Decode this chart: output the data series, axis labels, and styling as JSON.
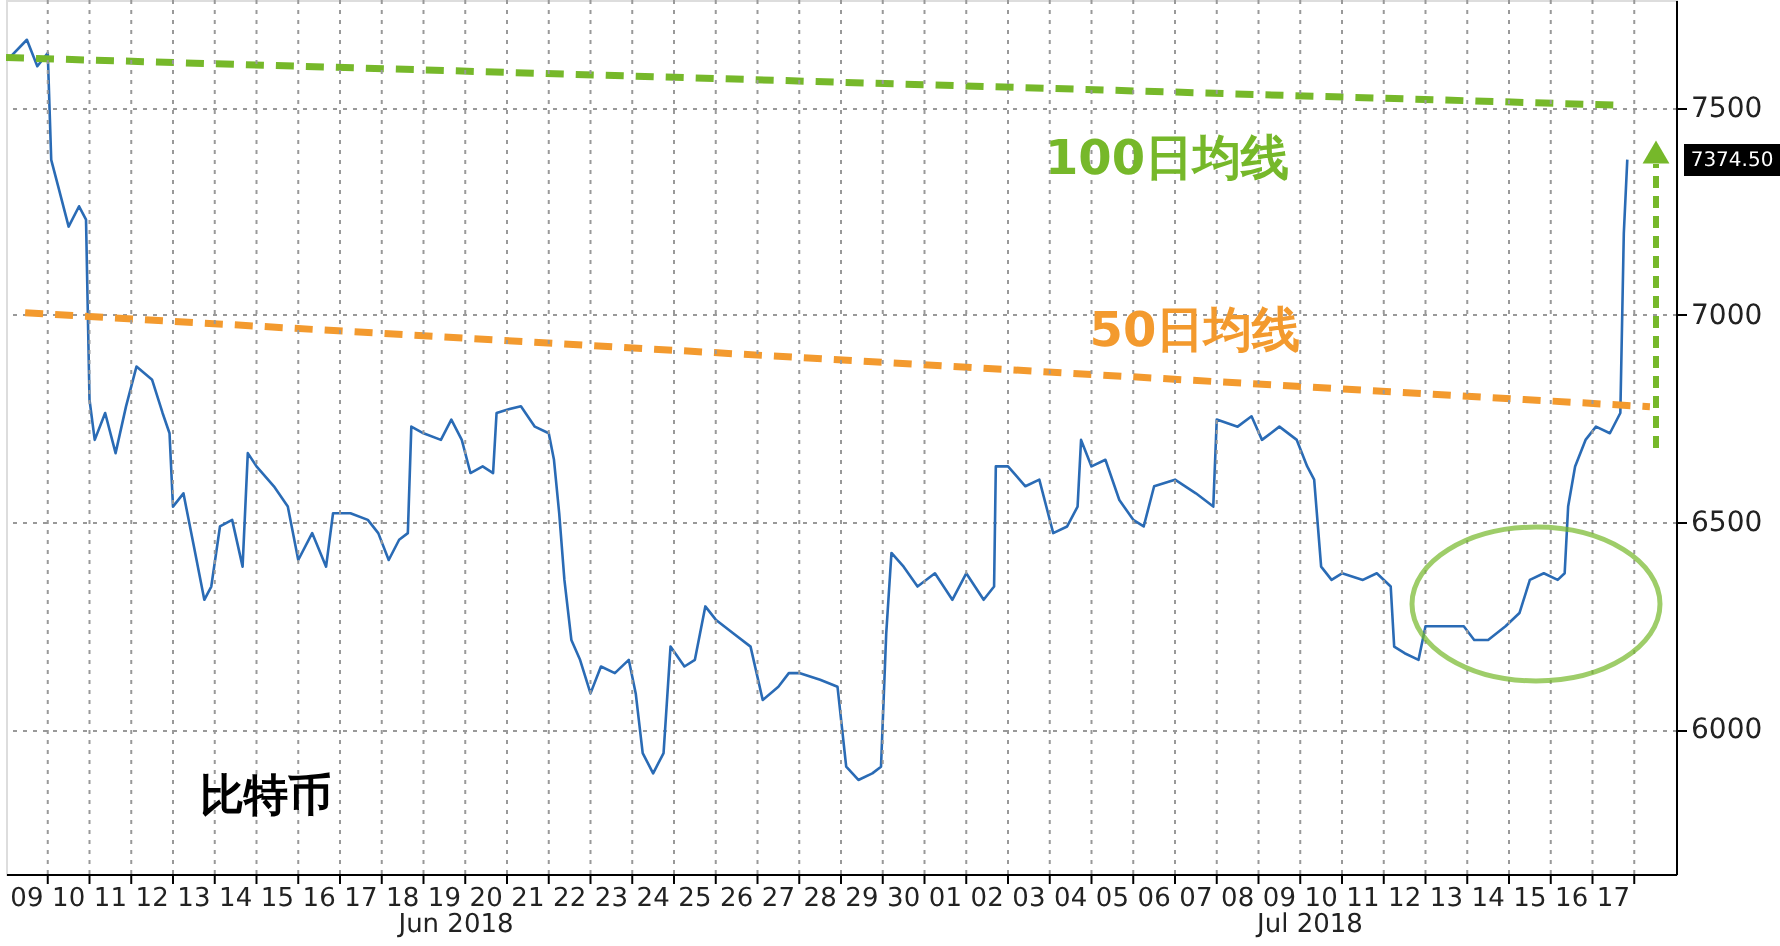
{
  "chart_data": {
    "type": "line",
    "xlim": [
      "2018-06-09T00:00",
      "2018-07-19T00:00"
    ],
    "ylim": [
      5650,
      7760
    ],
    "yticks": [
      6000,
      6500,
      7000,
      7500
    ],
    "grid": true,
    "legend": false,
    "xticks": [
      {
        "value": "2018-06-09T12:00",
        "label": "09"
      },
      {
        "value": "2018-06-10T12:00",
        "label": "10"
      },
      {
        "value": "2018-06-11T12:00",
        "label": "11"
      },
      {
        "value": "2018-06-12T12:00",
        "label": "12"
      },
      {
        "value": "2018-06-13T12:00",
        "label": "13"
      },
      {
        "value": "2018-06-14T12:00",
        "label": "14"
      },
      {
        "value": "2018-06-15T12:00",
        "label": "15"
      },
      {
        "value": "2018-06-16T12:00",
        "label": "16"
      },
      {
        "value": "2018-06-17T12:00",
        "label": "17"
      },
      {
        "value": "2018-06-18T12:00",
        "label": "18"
      },
      {
        "value": "2018-06-19T12:00",
        "label": "19"
      },
      {
        "value": "2018-06-20T12:00",
        "label": "20"
      },
      {
        "value": "2018-06-21T12:00",
        "label": "21"
      },
      {
        "value": "2018-06-22T12:00",
        "label": "22"
      },
      {
        "value": "2018-06-23T12:00",
        "label": "23"
      },
      {
        "value": "2018-06-24T12:00",
        "label": "24"
      },
      {
        "value": "2018-06-25T12:00",
        "label": "25"
      },
      {
        "value": "2018-06-26T12:00",
        "label": "26"
      },
      {
        "value": "2018-06-27T12:00",
        "label": "27"
      },
      {
        "value": "2018-06-28T12:00",
        "label": "28"
      },
      {
        "value": "2018-06-29T12:00",
        "label": "29"
      },
      {
        "value": "2018-06-30T12:00",
        "label": "30"
      },
      {
        "value": "2018-07-01T12:00",
        "label": "01"
      },
      {
        "value": "2018-07-02T12:00",
        "label": "02"
      },
      {
        "value": "2018-07-03T12:00",
        "label": "03"
      },
      {
        "value": "2018-07-04T12:00",
        "label": "04"
      },
      {
        "value": "2018-07-05T12:00",
        "label": "05"
      },
      {
        "value": "2018-07-06T12:00",
        "label": "06"
      },
      {
        "value": "2018-07-07T12:00",
        "label": "07"
      },
      {
        "value": "2018-07-08T12:00",
        "label": "08"
      },
      {
        "value": "2018-07-09T12:00",
        "label": "09"
      },
      {
        "value": "2018-07-10T12:00",
        "label": "10"
      },
      {
        "value": "2018-07-11T12:00",
        "label": "11"
      },
      {
        "value": "2018-07-12T12:00",
        "label": "12"
      },
      {
        "value": "2018-07-13T12:00",
        "label": "13"
      },
      {
        "value": "2018-07-14T12:00",
        "label": "14"
      },
      {
        "value": "2018-07-15T12:00",
        "label": "15"
      },
      {
        "value": "2018-07-16T12:00",
        "label": "16"
      },
      {
        "value": "2018-07-17T12:00",
        "label": "17"
      },
      {
        "value": "2018-06-10T00:00",
        "label": null
      },
      {
        "value": "2018-06-11T00:00",
        "label": null
      },
      {
        "value": "2018-06-12T00:00",
        "label": null
      },
      {
        "value": "2018-06-13T00:00",
        "label": null
      },
      {
        "value": "2018-06-14T00:00",
        "label": null
      },
      {
        "value": "2018-06-15T00:00",
        "label": null
      },
      {
        "value": "2018-06-16T00:00",
        "label": null
      },
      {
        "value": "2018-06-17T00:00",
        "label": null
      },
      {
        "value": "2018-06-18T00:00",
        "label": null
      },
      {
        "value": "2018-06-19T00:00",
        "label": null
      },
      {
        "value": "2018-06-20T00:00",
        "label": null
      },
      {
        "value": "2018-06-21T00:00",
        "label": null
      },
      {
        "value": "2018-06-22T00:00",
        "label": null
      },
      {
        "value": "2018-06-23T00:00",
        "label": null
      },
      {
        "value": "2018-06-24T00:00",
        "label": null
      },
      {
        "value": "2018-06-25T00:00",
        "label": null
      },
      {
        "value": "2018-06-26T00:00",
        "label": null
      },
      {
        "value": "2018-06-27T00:00",
        "label": null
      },
      {
        "value": "2018-06-28T00:00",
        "label": null
      },
      {
        "value": "2018-06-29T00:00",
        "label": null
      },
      {
        "value": "2018-06-30T00:00",
        "label": null
      },
      {
        "value": "2018-07-01T00:00",
        "label": null
      },
      {
        "value": "2018-07-02T00:00",
        "label": null
      },
      {
        "value": "2018-07-03T00:00",
        "label": null
      },
      {
        "value": "2018-07-04T00:00",
        "label": null
      },
      {
        "value": "2018-07-05T00:00",
        "label": null
      },
      {
        "value": "2018-07-06T00:00",
        "label": null
      },
      {
        "value": "2018-07-07T00:00",
        "label": null
      },
      {
        "value": "2018-07-08T00:00",
        "label": null
      },
      {
        "value": "2018-07-09T00:00",
        "label": null
      },
      {
        "value": "2018-07-10T00:00",
        "label": null
      },
      {
        "value": "2018-07-11T00:00",
        "label": null
      },
      {
        "value": "2018-07-12T00:00",
        "label": null
      },
      {
        "value": "2018-07-13T00:00",
        "label": null
      },
      {
        "value": "2018-07-14T00:00",
        "label": null
      },
      {
        "value": "2018-07-15T00:00",
        "label": null
      },
      {
        "value": "2018-07-16T00:00",
        "label": null
      },
      {
        "value": "2018-07-17T00:00",
        "label": null
      },
      {
        "value": "2018-07-18T00:00",
        "label": null
      }
    ],
    "series": [
      {
        "color": "#2a6bb5",
        "line_style": "solid",
        "x": [
          "2018-06-09T01:00",
          "2018-06-09T12:00",
          "2018-06-09T18:00",
          "2018-06-10T00:00",
          "2018-06-10T02:00",
          "2018-06-10T06:00",
          "2018-06-10T12:00",
          "2018-06-10T18:00",
          "2018-06-10T22:00",
          "2018-06-11T00:00",
          "2018-06-11T03:00",
          "2018-06-11T09:00",
          "2018-06-11T15:00",
          "2018-06-11T21:00",
          "2018-06-12T03:00",
          "2018-06-12T12:00",
          "2018-06-12T18:00",
          "2018-06-12T22:00",
          "2018-06-13T00:00",
          "2018-06-13T06:00",
          "2018-06-13T12:00",
          "2018-06-13T18:00",
          "2018-06-13T22:00",
          "2018-06-14T03:00",
          "2018-06-14T10:00",
          "2018-06-14T16:00",
          "2018-06-14T19:00",
          "2018-06-15T00:00",
          "2018-06-15T10:00",
          "2018-06-15T18:00",
          "2018-06-16T00:00",
          "2018-06-16T08:00",
          "2018-06-16T16:00",
          "2018-06-16T20:00",
          "2018-06-17T06:00",
          "2018-06-17T16:00",
          "2018-06-17T22:00",
          "2018-06-18T04:00",
          "2018-06-18T10:00",
          "2018-06-18T15:00",
          "2018-06-18T17:00",
          "2018-06-19T00:00",
          "2018-06-19T10:00",
          "2018-06-19T16:00",
          "2018-06-19T22:00",
          "2018-06-20T03:00",
          "2018-06-20T10:00",
          "2018-06-20T16:00",
          "2018-06-20T18:00",
          "2018-06-21T00:00",
          "2018-06-21T08:00",
          "2018-06-21T16:00",
          "2018-06-22T00:00",
          "2018-06-22T03:00",
          "2018-06-22T06:00",
          "2018-06-22T09:00",
          "2018-06-22T13:00",
          "2018-06-22T18:00",
          "2018-06-23T00:00",
          "2018-06-23T06:00",
          "2018-06-23T14:00",
          "2018-06-23T22:00",
          "2018-06-24T02:00",
          "2018-06-24T06:00",
          "2018-06-24T12:00",
          "2018-06-24T18:00",
          "2018-06-24T22:00",
          "2018-06-25T06:00",
          "2018-06-25T12:00",
          "2018-06-25T18:00",
          "2018-06-26T00:00",
          "2018-06-26T10:00",
          "2018-06-26T20:00",
          "2018-06-27T03:00",
          "2018-06-27T12:00",
          "2018-06-27T18:00",
          "2018-06-28T00:00",
          "2018-06-28T12:00",
          "2018-06-28T22:00",
          "2018-06-29T03:00",
          "2018-06-29T10:00",
          "2018-06-29T18:00",
          "2018-06-29T23:00",
          "2018-06-30T02:00",
          "2018-06-30T05:00",
          "2018-06-30T12:00",
          "2018-06-30T20:00",
          "2018-07-01T06:00",
          "2018-07-01T16:00",
          "2018-07-02T00:00",
          "2018-07-02T10:00",
          "2018-07-02T16:00",
          "2018-07-02T17:00",
          "2018-07-03T00:00",
          "2018-07-03T10:00",
          "2018-07-03T18:00",
          "2018-07-04T02:00",
          "2018-07-04T10:00",
          "2018-07-04T16:00",
          "2018-07-04T18:00",
          "2018-07-05T00:00",
          "2018-07-05T08:00",
          "2018-07-05T16:00",
          "2018-07-06T00:00",
          "2018-07-06T06:00",
          "2018-07-06T12:00",
          "2018-07-07T00:00",
          "2018-07-07T12:00",
          "2018-07-07T22:00",
          "2018-07-08T00:00",
          "2018-07-08T12:00",
          "2018-07-08T20:00",
          "2018-07-09T02:00",
          "2018-07-09T12:00",
          "2018-07-09T22:00",
          "2018-07-10T04:00",
          "2018-07-10T08:00",
          "2018-07-10T12:00",
          "2018-07-10T18:00",
          "2018-07-11T00:00",
          "2018-07-11T12:00",
          "2018-07-11T20:00",
          "2018-07-12T04:00",
          "2018-07-12T06:00",
          "2018-07-12T12:00",
          "2018-07-12T20:00",
          "2018-07-13T00:00",
          "2018-07-13T12:00",
          "2018-07-13T22:00",
          "2018-07-14T04:00",
          "2018-07-14T12:00",
          "2018-07-14T22:00",
          "2018-07-15T06:00",
          "2018-07-15T12:00",
          "2018-07-15T20:00",
          "2018-07-16T04:00",
          "2018-07-16T08:00",
          "2018-07-16T10:00",
          "2018-07-16T14:00",
          "2018-07-16T20:00",
          "2018-07-17T02:00",
          "2018-07-17T10:00",
          "2018-07-17T16:00",
          "2018-07-17T18:00",
          "2018-07-17T20:00"
        ],
        "values": [
          7616,
          7664,
          7600,
          7632,
          7374,
          7310,
          7213,
          7262,
          7230,
          6795,
          6698,
          6763,
          6666,
          6779,
          6875,
          6843,
          6763,
          6714,
          6537,
          6569,
          6441,
          6312,
          6344,
          6489,
          6505,
          6392,
          6666,
          6634,
          6586,
          6537,
          6408,
          6473,
          6392,
          6521,
          6521,
          6505,
          6473,
          6408,
          6457,
          6473,
          6730,
          6714,
          6698,
          6747,
          6698,
          6618,
          6634,
          6618,
          6763,
          6771,
          6779,
          6730,
          6714,
          6650,
          6521,
          6360,
          6215,
          6167,
          6086,
          6151,
          6135,
          6167,
          6086,
          5942,
          5893,
          5942,
          6199,
          6151,
          6167,
          6296,
          6264,
          6231,
          6199,
          6070,
          6102,
          6135,
          6135,
          6119,
          6102,
          5909,
          5877,
          5893,
          5909,
          6231,
          6425,
          6392,
          6344,
          6376,
          6312,
          6376,
          6312,
          6344,
          6634,
          6634,
          6586,
          6602,
          6473,
          6489,
          6537,
          6698,
          6634,
          6650,
          6553,
          6505,
          6489,
          6586,
          6602,
          6569,
          6537,
          6747,
          6730,
          6755,
          6698,
          6730,
          6698,
          6634,
          6602,
          6392,
          6360,
          6376,
          6360,
          6376,
          6344,
          6199,
          6183,
          6167,
          6248,
          6248,
          6248,
          6215,
          6215,
          6248,
          6280,
          6360,
          6376,
          6360,
          6376,
          6537,
          6634,
          6698,
          6730,
          6714,
          6763,
          7197,
          7374.5
        ]
      },
      {
        "name": "100日均线",
        "color": "#76b82a",
        "line_style": "dashed",
        "x": [
          "2018-06-09T00:00",
          "2018-07-17T15:00"
        ],
        "values": [
          7621,
          7506
        ]
      },
      {
        "name": "50日均线",
        "color": "#f39a2e",
        "line_style": "dashed",
        "x": [
          "2018-06-09T11:00",
          "2018-07-18T09:00"
        ],
        "values": [
          7005,
          6778
        ]
      }
    ],
    "annotations": [
      "比特币",
      "Jun 2018",
      "Jul 2018",
      "7374.50"
    ]
  }
}
